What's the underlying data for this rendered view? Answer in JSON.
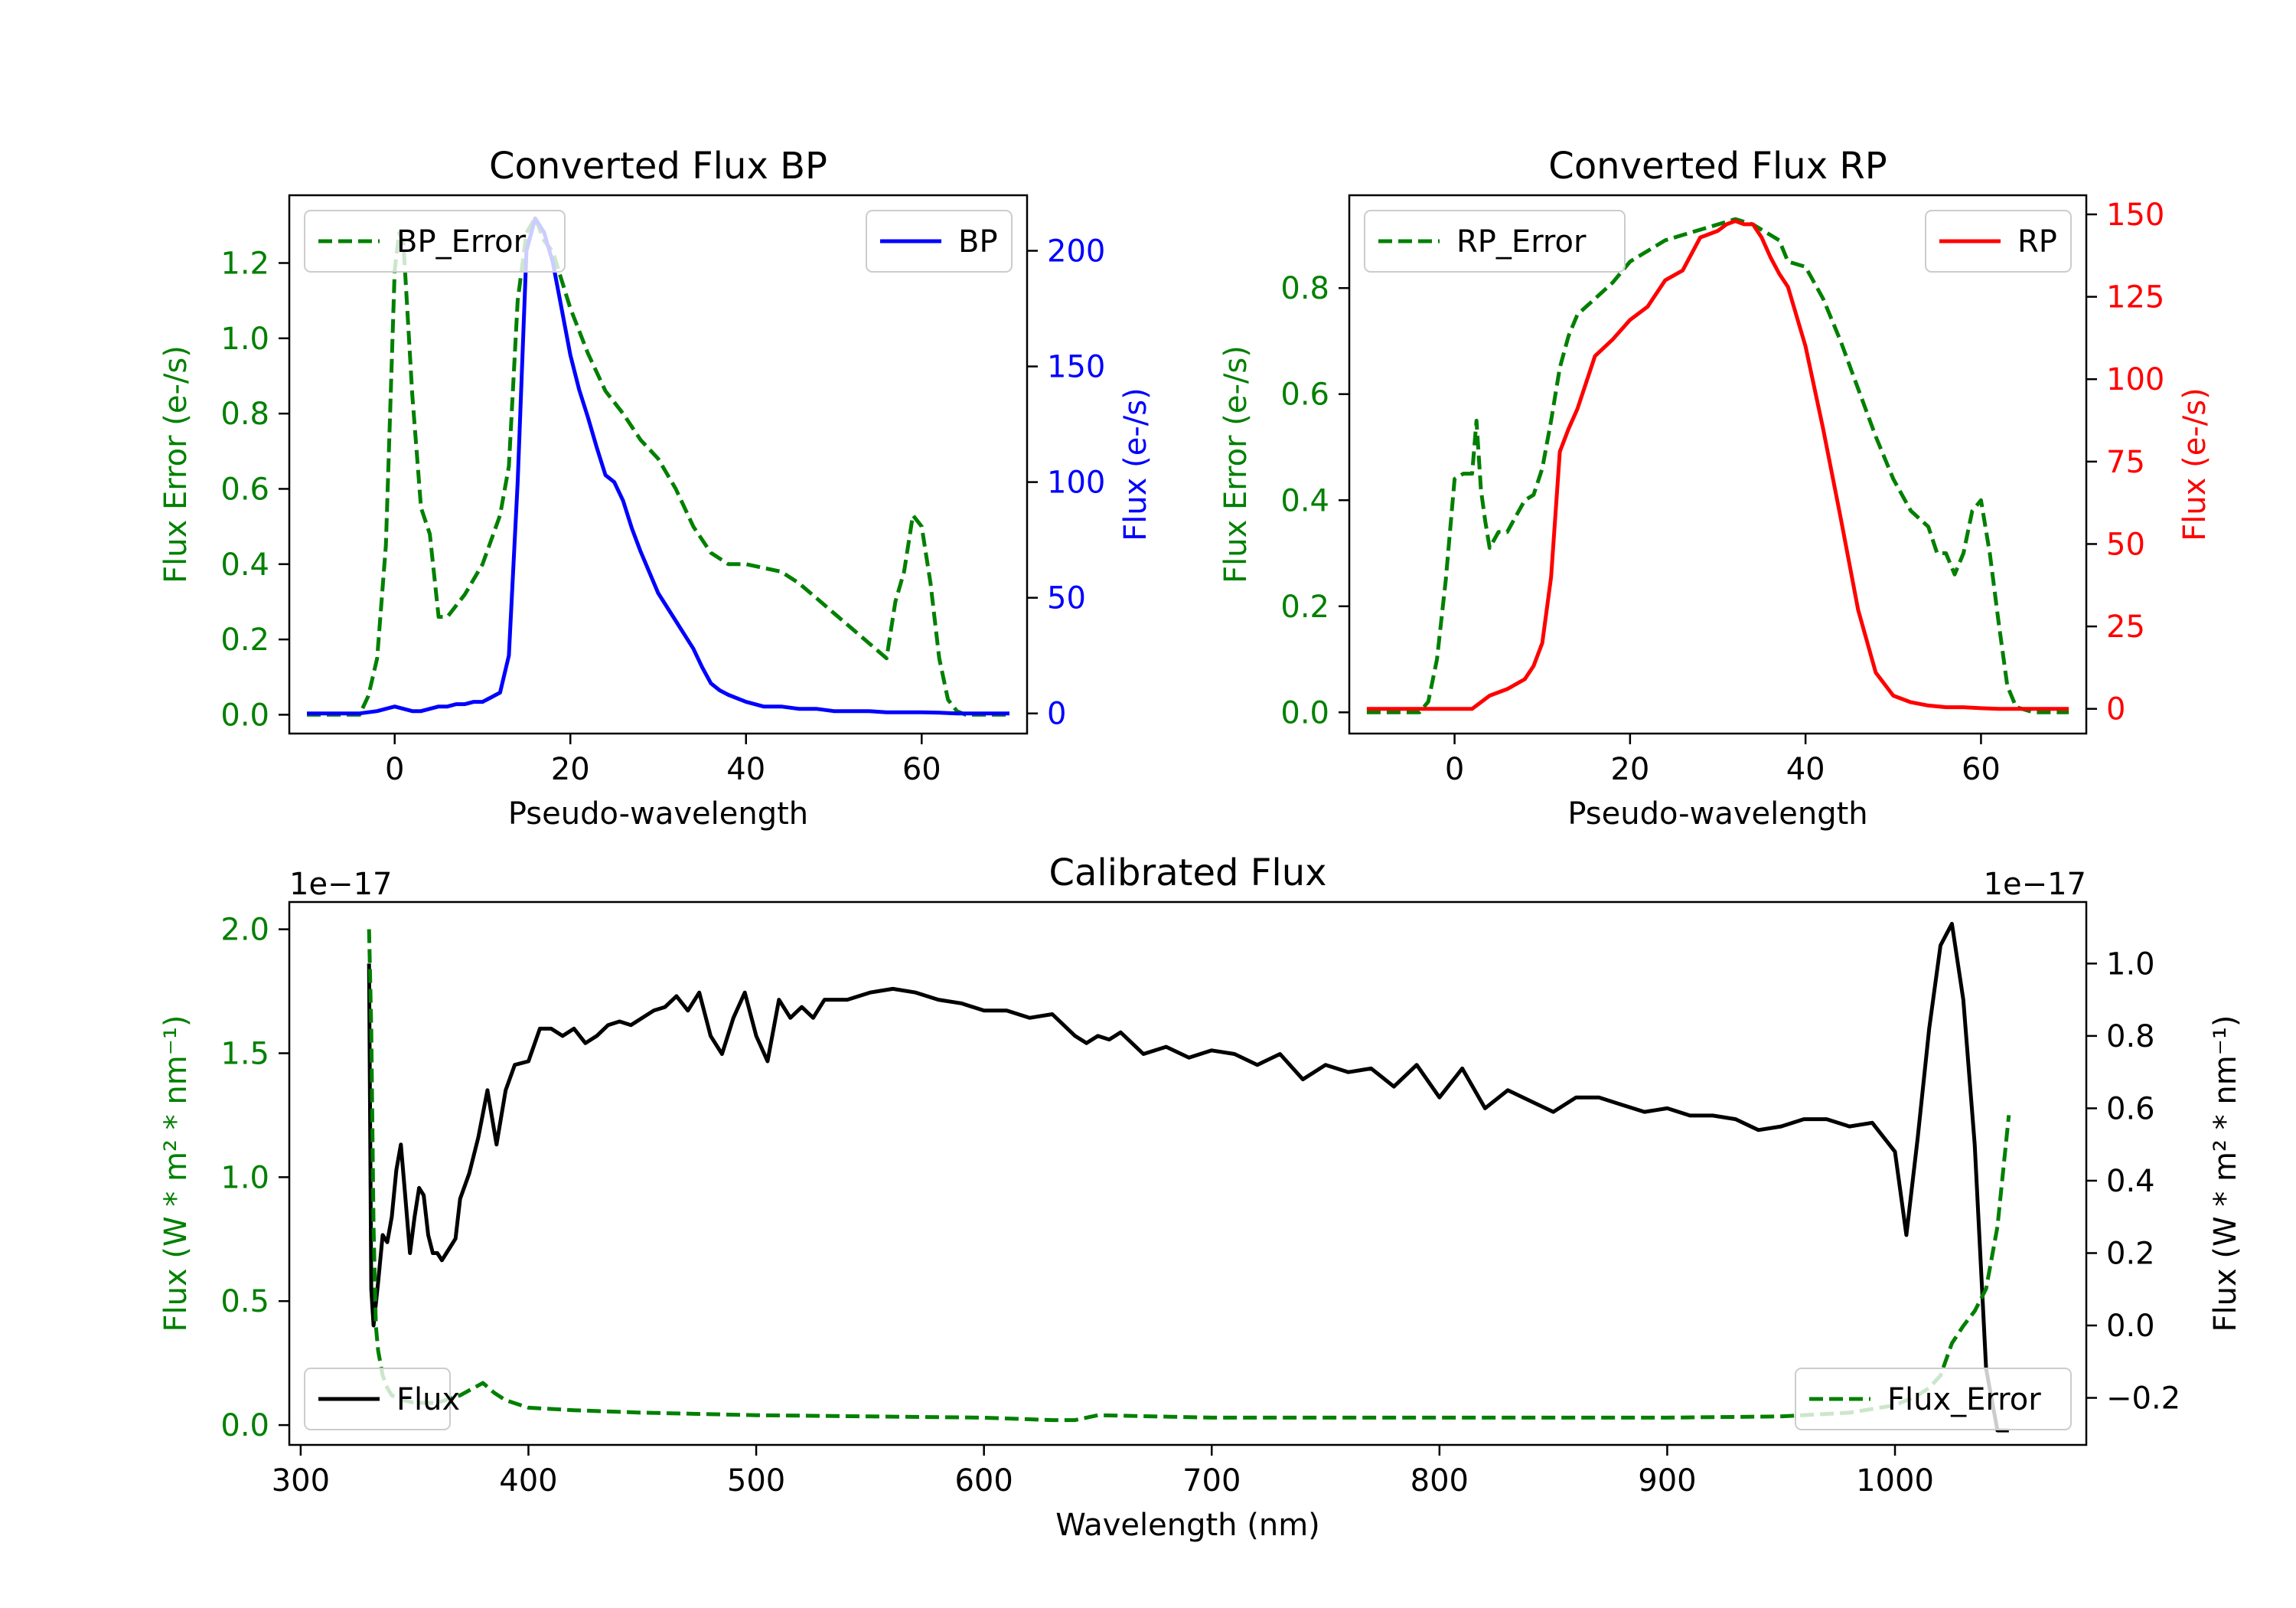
{
  "chart_data": [
    {
      "id": "bp",
      "type": "line",
      "title": "Converted Flux BP",
      "xlabel": "Pseudo-wavelength",
      "ylabel_left": "Flux Error (e-/s)",
      "ylabel_right": "Flux (e-/s)",
      "xlim": [
        -12,
        72
      ],
      "ylim_left": [
        -0.05,
        1.38
      ],
      "ylim_right": [
        -8.7,
        224
      ],
      "xticks": [
        0,
        20,
        40,
        60
      ],
      "yticks_left": [
        0.0,
        0.2,
        0.4,
        0.6,
        0.8,
        1.0,
        1.2
      ],
      "yticks_right": [
        0,
        50,
        100,
        150,
        200
      ],
      "left_tick_labels": [
        "0.0",
        "0.2",
        "0.4",
        "0.6",
        "0.8",
        "1.0",
        "1.2"
      ],
      "right_tick_labels": [
        "0",
        "50",
        "100",
        "150",
        "200"
      ],
      "x_tick_labels": [
        "0",
        "20",
        "40",
        "60"
      ],
      "colors": {
        "error": "#008000",
        "flux": "#0000ff",
        "left_axis": "#008000",
        "right_axis": "#0000ff"
      },
      "legend": [
        {
          "label": "BP_Error",
          "position": "upper-left",
          "style": "dashed",
          "color": "#008000"
        },
        {
          "label": "BP",
          "position": "upper-right",
          "style": "solid",
          "color": "#0000ff"
        }
      ],
      "series": [
        {
          "name": "BP_Error",
          "axis": "left",
          "style": "dashed",
          "color": "#008000",
          "x": [
            -10,
            -6,
            -4,
            -3,
            -2,
            -1,
            0,
            0.5,
            1,
            2,
            3,
            4,
            5,
            6,
            8,
            10,
            12,
            13,
            14,
            15,
            16,
            17,
            18,
            20,
            22,
            24,
            26,
            28,
            30,
            32,
            34,
            36,
            38,
            40,
            42,
            44,
            46,
            48,
            50,
            52,
            54,
            56,
            57,
            58,
            59,
            60,
            61,
            62,
            63,
            64,
            65,
            66,
            68,
            70
          ],
          "values": [
            0,
            0,
            0,
            0.05,
            0.15,
            0.45,
            1.18,
            1.28,
            1.25,
            0.85,
            0.55,
            0.48,
            0.26,
            0.26,
            0.32,
            0.4,
            0.53,
            0.66,
            1.1,
            1.28,
            1.32,
            1.26,
            1.23,
            1.08,
            0.96,
            0.86,
            0.8,
            0.73,
            0.68,
            0.6,
            0.5,
            0.43,
            0.4,
            0.4,
            0.39,
            0.38,
            0.35,
            0.31,
            0.27,
            0.23,
            0.19,
            0.15,
            0.3,
            0.38,
            0.53,
            0.5,
            0.35,
            0.15,
            0.04,
            0.01,
            0,
            0,
            0,
            0
          ]
        },
        {
          "name": "BP",
          "axis": "right",
          "style": "solid",
          "color": "#0000ff",
          "x": [
            -10,
            -4,
            -2,
            0,
            1,
            2,
            3,
            4,
            5,
            6,
            7,
            8,
            9,
            10,
            11,
            12,
            13,
            14,
            15,
            16,
            17,
            18,
            19,
            20,
            21,
            22,
            23,
            24,
            25,
            26,
            27,
            28,
            30,
            32,
            34,
            35,
            36,
            37,
            38,
            40,
            42,
            44,
            46,
            48,
            50,
            52,
            54,
            56,
            58,
            60,
            62,
            64,
            66,
            70
          ],
          "values": [
            0,
            0,
            1,
            3,
            2,
            1,
            1,
            2,
            3,
            3,
            4,
            4,
            5,
            5,
            7,
            9,
            25,
            100,
            200,
            214,
            208,
            195,
            175,
            155,
            140,
            128,
            115,
            103,
            100,
            92,
            80,
            70,
            52,
            40,
            28,
            20,
            13,
            10,
            8,
            5,
            3,
            3,
            2,
            2,
            1,
            1,
            1,
            0.5,
            0.5,
            0.5,
            0.3,
            0,
            0,
            0
          ]
        }
      ]
    },
    {
      "id": "rp",
      "type": "line",
      "title": "Converted Flux RP",
      "xlabel": "Pseudo-wavelength",
      "ylabel_left": "Flux Error (e-/s)",
      "ylabel_right": "Flux (e-/s)",
      "xlim": [
        -12,
        72
      ],
      "ylim_left": [
        -0.04,
        0.975
      ],
      "ylim_right": [
        -7.5,
        155.8
      ],
      "xticks": [
        0,
        20,
        40,
        60
      ],
      "yticks_left": [
        0.0,
        0.2,
        0.4,
        0.6,
        0.8
      ],
      "yticks_right": [
        0,
        25,
        50,
        75,
        100,
        125,
        150
      ],
      "left_tick_labels": [
        "0.0",
        "0.2",
        "0.4",
        "0.6",
        "0.8"
      ],
      "right_tick_labels": [
        "0",
        "25",
        "50",
        "75",
        "100",
        "125",
        "150"
      ],
      "x_tick_labels": [
        "0",
        "20",
        "40",
        "60"
      ],
      "colors": {
        "error": "#008000",
        "flux": "#ff0000",
        "left_axis": "#008000",
        "right_axis": "#ff0000"
      },
      "legend": [
        {
          "label": "RP_Error",
          "position": "upper-left",
          "style": "dashed",
          "color": "#008000"
        },
        {
          "label": "RP",
          "position": "upper-right",
          "style": "solid",
          "color": "#ff0000"
        }
      ],
      "series": [
        {
          "name": "RP_Error",
          "axis": "left",
          "style": "dashed",
          "color": "#008000",
          "x": [
            -10,
            -4,
            -3,
            -2,
            -1,
            0,
            1,
            2,
            2.5,
            3,
            3.5,
            4,
            5,
            6,
            7,
            8,
            9,
            10,
            11,
            12,
            13,
            14,
            16,
            18,
            20,
            22,
            24,
            26,
            28,
            30,
            32,
            34,
            36,
            37,
            38,
            40,
            42,
            44,
            46,
            48,
            50,
            52,
            54,
            55,
            56,
            57,
            58,
            59,
            60,
            61,
            62,
            63,
            64,
            66,
            70
          ],
          "values": [
            0,
            0,
            0.02,
            0.1,
            0.25,
            0.44,
            0.45,
            0.45,
            0.55,
            0.42,
            0.36,
            0.31,
            0.34,
            0.34,
            0.37,
            0.4,
            0.41,
            0.46,
            0.55,
            0.65,
            0.71,
            0.75,
            0.78,
            0.81,
            0.85,
            0.87,
            0.89,
            0.9,
            0.91,
            0.92,
            0.93,
            0.92,
            0.9,
            0.89,
            0.85,
            0.84,
            0.78,
            0.7,
            0.61,
            0.52,
            0.44,
            0.38,
            0.35,
            0.3,
            0.3,
            0.26,
            0.3,
            0.38,
            0.4,
            0.3,
            0.17,
            0.05,
            0.01,
            0,
            0
          ]
        },
        {
          "name": "RP",
          "axis": "right",
          "style": "solid",
          "color": "#ff0000",
          "x": [
            -10,
            0,
            2,
            4,
            6,
            8,
            9,
            10,
            11,
            12,
            13,
            14,
            16,
            18,
            20,
            22,
            24,
            26,
            28,
            30,
            31,
            32,
            33,
            34,
            35,
            36,
            37,
            38,
            40,
            42,
            44,
            46,
            48,
            50,
            52,
            54,
            56,
            58,
            60,
            62,
            66,
            70
          ],
          "values": [
            0,
            0,
            0,
            4,
            6,
            9,
            13,
            20,
            40,
            78,
            85,
            91,
            107,
            112,
            118,
            122,
            130,
            133,
            143,
            145,
            147,
            148,
            147,
            147,
            143,
            137,
            132,
            128,
            110,
            85,
            58,
            30,
            11,
            4,
            2,
            1,
            0.5,
            0.5,
            0.2,
            0,
            0,
            0
          ]
        }
      ]
    },
    {
      "id": "calib",
      "type": "line",
      "title": "Calibrated Flux",
      "xlabel": "Wavelength (nm)",
      "ylabel_left": "Flux (W * m² * nm⁻¹)",
      "ylabel_right": "Flux (W * m² * nm⁻¹)",
      "offset_left": "1e−17",
      "offset_right": "1e−17",
      "xlim": [
        295,
        1084
      ],
      "ylim_left": [
        -0.08,
        2.11
      ],
      "ylim_right": [
        -0.33,
        1.17
      ],
      "xticks": [
        300,
        400,
        500,
        600,
        700,
        800,
        900,
        1000
      ],
      "yticks_left": [
        0.0,
        0.5,
        1.0,
        1.5,
        2.0
      ],
      "yticks_right": [
        -0.2,
        0.0,
        0.2,
        0.4,
        0.6,
        0.8,
        1.0
      ],
      "left_tick_labels": [
        "0.0",
        "0.5",
        "1.0",
        "1.5",
        "2.0"
      ],
      "right_tick_labels": [
        "−0.2",
        "0.0",
        "0.2",
        "0.4",
        "0.6",
        "0.8",
        "1.0"
      ],
      "x_tick_labels": [
        "300",
        "400",
        "500",
        "600",
        "700",
        "800",
        "900",
        "1000"
      ],
      "colors": {
        "error": "#008000",
        "flux": "#000000",
        "left_axis": "#008000",
        "right_axis": "#000000"
      },
      "legend": [
        {
          "label": "Flux",
          "position": "lower-left",
          "style": "solid",
          "color": "#000000"
        },
        {
          "label": "Flux_Error",
          "position": "lower-right",
          "style": "dashed",
          "color": "#008000"
        }
      ],
      "series": [
        {
          "name": "Flux",
          "axis": "right",
          "style": "solid",
          "color": "#000000",
          "x": [
            330,
            331,
            332,
            334,
            336,
            338,
            340,
            342,
            344,
            346,
            348,
            350,
            352,
            354,
            356,
            358,
            360,
            362,
            364,
            366,
            368,
            370,
            374,
            378,
            382,
            386,
            390,
            394,
            400,
            405,
            410,
            415,
            420,
            425,
            430,
            435,
            440,
            445,
            450,
            455,
            460,
            465,
            470,
            475,
            480,
            485,
            490,
            495,
            500,
            505,
            510,
            515,
            520,
            525,
            530,
            540,
            550,
            560,
            570,
            580,
            590,
            600,
            610,
            620,
            630,
            640,
            645,
            650,
            655,
            660,
            665,
            670,
            680,
            690,
            700,
            710,
            720,
            730,
            740,
            750,
            760,
            770,
            780,
            790,
            800,
            810,
            820,
            830,
            840,
            850,
            860,
            870,
            880,
            890,
            900,
            910,
            920,
            930,
            940,
            950,
            960,
            970,
            980,
            990,
            1000,
            1005,
            1010,
            1015,
            1020,
            1025,
            1030,
            1035,
            1040,
            1045,
            1050
          ],
          "values": [
            1.0,
            0.1,
            0.0,
            0.12,
            0.25,
            0.23,
            0.3,
            0.43,
            0.5,
            0.35,
            0.2,
            0.3,
            0.38,
            0.36,
            0.25,
            0.2,
            0.2,
            0.18,
            0.2,
            0.22,
            0.24,
            0.35,
            0.42,
            0.52,
            0.65,
            0.5,
            0.65,
            0.72,
            0.73,
            0.82,
            0.82,
            0.8,
            0.82,
            0.78,
            0.8,
            0.83,
            0.84,
            0.83,
            0.85,
            0.87,
            0.88,
            0.91,
            0.87,
            0.92,
            0.8,
            0.75,
            0.85,
            0.92,
            0.8,
            0.73,
            0.9,
            0.85,
            0.88,
            0.85,
            0.9,
            0.9,
            0.92,
            0.93,
            0.92,
            0.9,
            0.89,
            0.87,
            0.87,
            0.85,
            0.86,
            0.8,
            0.78,
            0.8,
            0.79,
            0.81,
            0.78,
            0.75,
            0.77,
            0.74,
            0.76,
            0.75,
            0.72,
            0.75,
            0.68,
            0.72,
            0.7,
            0.71,
            0.66,
            0.72,
            0.63,
            0.71,
            0.6,
            0.65,
            0.62,
            0.59,
            0.63,
            0.63,
            0.61,
            0.59,
            0.6,
            0.58,
            0.58,
            0.57,
            0.54,
            0.55,
            0.57,
            0.57,
            0.55,
            0.56,
            0.48,
            0.25,
            0.52,
            0.82,
            1.05,
            1.11,
            0.9,
            0.5,
            -0.12,
            -0.29,
            -0.29
          ]
        },
        {
          "name": "Flux_Error",
          "axis": "left",
          "style": "dashed",
          "color": "#008000",
          "x": [
            330,
            331,
            332,
            333,
            334,
            336,
            338,
            340,
            345,
            350,
            360,
            370,
            380,
            385,
            390,
            400,
            420,
            450,
            500,
            550,
            600,
            630,
            640,
            650,
            700,
            800,
            900,
            950,
            980,
            1000,
            1010,
            1015,
            1020,
            1025,
            1030,
            1035,
            1040,
            1045,
            1050
          ],
          "values": [
            2.0,
            1.6,
            0.8,
            0.4,
            0.3,
            0.2,
            0.15,
            0.12,
            0.1,
            0.09,
            0.09,
            0.12,
            0.17,
            0.13,
            0.1,
            0.07,
            0.06,
            0.05,
            0.04,
            0.035,
            0.03,
            0.02,
            0.02,
            0.04,
            0.03,
            0.03,
            0.03,
            0.035,
            0.05,
            0.08,
            0.12,
            0.15,
            0.2,
            0.33,
            0.4,
            0.46,
            0.55,
            0.8,
            1.25
          ]
        }
      ]
    }
  ]
}
